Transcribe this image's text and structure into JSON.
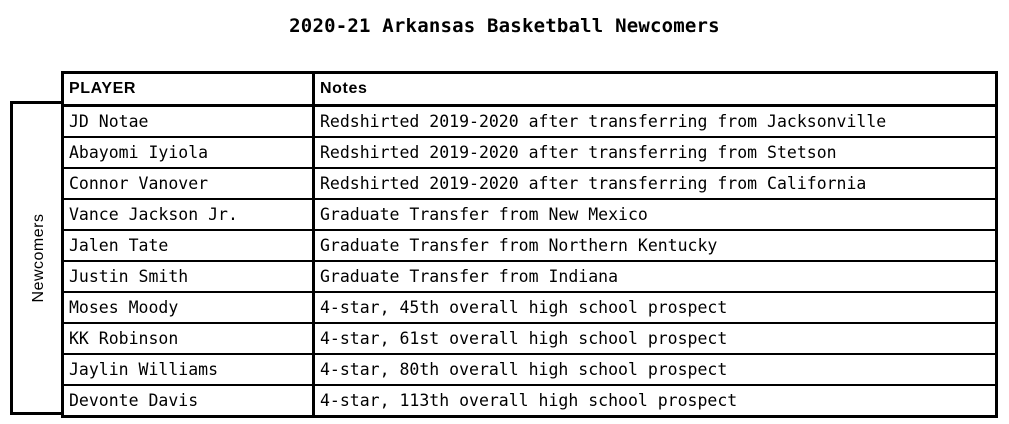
{
  "title": "2020-21 Arkansas Basketball Newcomers",
  "group_label": "Newcomers",
  "columns": [
    "PLAYER",
    "Notes"
  ],
  "rows": [
    {
      "player": "JD Notae",
      "notes": "Redshirted 2019-2020 after transferring from Jacksonville"
    },
    {
      "player": "Abayomi Iyiola",
      "notes": "Redshirted 2019-2020 after transferring from Stetson"
    },
    {
      "player": "Connor Vanover",
      "notes": "Redshirted 2019-2020 after transferring from California"
    },
    {
      "player": "Vance Jackson Jr.",
      "notes": "Graduate Transfer from New Mexico"
    },
    {
      "player": "Jalen Tate",
      "notes": "Graduate Transfer from Northern Kentucky"
    },
    {
      "player": "Justin Smith",
      "notes": "Graduate Transfer from Indiana"
    },
    {
      "player": "Moses Moody",
      "notes": "4-star, 45th overall high school prospect"
    },
    {
      "player": "KK Robinson",
      "notes": "4-star, 61st overall high school prospect"
    },
    {
      "player": "Jaylin Williams",
      "notes": "4-star, 80th overall high school prospect"
    },
    {
      "player": "Devonte Davis",
      "notes": "4-star, 113th overall high school prospect"
    }
  ]
}
